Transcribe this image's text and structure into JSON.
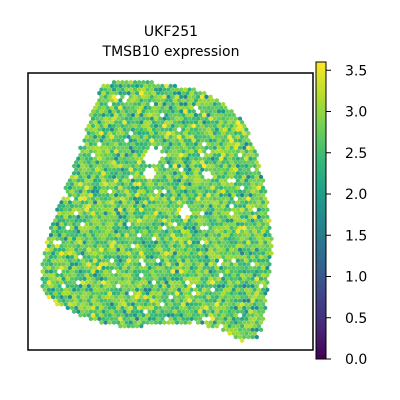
{
  "chart_data": {
    "type": "scatter",
    "title_lines": [
      "UKF251",
      "TMSB10 expression"
    ],
    "xlabel": "",
    "ylabel": "",
    "colorbar": {
      "colormap": "viridis",
      "range": [
        0.0,
        3.6
      ],
      "ticks": [
        0.0,
        0.5,
        1.0,
        1.5,
        2.0,
        2.5,
        3.0,
        3.5
      ],
      "tick_labels": [
        "0.0",
        "0.5",
        "1.0",
        "1.5",
        "2.0",
        "2.5",
        "3.0",
        "3.5"
      ]
    },
    "grid": false,
    "axis_ticks": false,
    "marker": "hexagon",
    "tissue_outline": [
      [
        0.27,
        0.02
      ],
      [
        0.42,
        0.03
      ],
      [
        0.6,
        0.06
      ],
      [
        0.7,
        0.12
      ],
      [
        0.76,
        0.18
      ],
      [
        0.8,
        0.28
      ],
      [
        0.84,
        0.45
      ],
      [
        0.86,
        0.62
      ],
      [
        0.84,
        0.8
      ],
      [
        0.82,
        0.95
      ],
      [
        0.75,
        0.97
      ],
      [
        0.68,
        0.93
      ],
      [
        0.58,
        0.9
      ],
      [
        0.45,
        0.91
      ],
      [
        0.35,
        0.92
      ],
      [
        0.25,
        0.9
      ],
      [
        0.12,
        0.85
      ],
      [
        0.05,
        0.79
      ],
      [
        0.05,
        0.68
      ],
      [
        0.08,
        0.55
      ],
      [
        0.13,
        0.42
      ],
      [
        0.18,
        0.28
      ],
      [
        0.22,
        0.15
      ]
    ],
    "holes": [
      [
        0.44,
        0.3,
        0.03
      ],
      [
        0.43,
        0.36,
        0.02
      ],
      [
        0.55,
        0.5,
        0.02
      ],
      [
        0.63,
        0.37,
        0.015
      ]
    ],
    "value_summary": {
      "typical_low": 2.3,
      "typical_high": 3.2,
      "most_common": 2.7
    }
  }
}
